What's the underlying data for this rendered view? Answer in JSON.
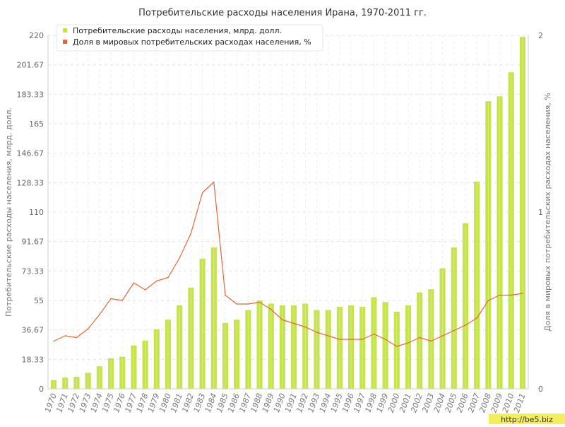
{
  "chart_data": {
    "type": "bar+line",
    "title": "Потребительские расходы населения Ирана, 1970-2011 гг.",
    "ylabel_left": "Потребительские расходы населения, млрд. долл.",
    "ylabel_right": "Доля в мировых потребительских расходах населения, %",
    "ylim_left": [
      0,
      220
    ],
    "ylim_right": [
      0,
      2
    ],
    "y_ticks_left": [
      "0",
      "18.33",
      "36.67",
      "55",
      "73.33",
      "91.67",
      "110",
      "128.33",
      "146.67",
      "165",
      "183.33",
      "201.67",
      "220"
    ],
    "y_ticks_right": [
      "0",
      "1",
      "2"
    ],
    "categories": [
      "1970",
      "1971",
      "1972",
      "1973",
      "1974",
      "1975",
      "1976",
      "1977",
      "1978",
      "1979",
      "1980",
      "1981",
      "1982",
      "1983",
      "1984",
      "1985",
      "1986",
      "1987",
      "1988",
      "1989",
      "1990",
      "1991",
      "1992",
      "1993",
      "1994",
      "1995",
      "1996",
      "1997",
      "1998",
      "1999",
      "2000",
      "2001",
      "2002",
      "2003",
      "2004",
      "2005",
      "2006",
      "2007",
      "2008",
      "2009",
      "2010",
      "2011"
    ],
    "series": [
      {
        "name": "Потребительские расходы населения, млрд. долл.",
        "axis": "left",
        "type": "bar",
        "color": "#c5e34a",
        "values": [
          5.5,
          7,
          7.5,
          10,
          14,
          19,
          20,
          27,
          30,
          37,
          43,
          52,
          63,
          81,
          88,
          41,
          43,
          49,
          55,
          53,
          52,
          52,
          53,
          49,
          49,
          51,
          52,
          51,
          57,
          54,
          48,
          52,
          60,
          62,
          75,
          88,
          103,
          129,
          179,
          182,
          197,
          219
        ]
      },
      {
        "name": "Доля в мировых потребительских расходах населения, %",
        "axis": "right",
        "type": "line",
        "color": "#e8663a",
        "values": [
          0.27,
          0.3,
          0.29,
          0.34,
          0.42,
          0.51,
          0.5,
          0.6,
          0.56,
          0.61,
          0.63,
          0.74,
          0.88,
          1.11,
          1.17,
          0.53,
          0.48,
          0.48,
          0.49,
          0.45,
          0.39,
          0.37,
          0.35,
          0.32,
          0.3,
          0.28,
          0.28,
          0.28,
          0.31,
          0.28,
          0.24,
          0.26,
          0.29,
          0.27,
          0.3,
          0.33,
          0.36,
          0.4,
          0.5,
          0.53,
          0.53,
          0.54
        ]
      }
    ],
    "legend_position": "top-left",
    "grid": true
  },
  "watermark": "http://be5.biz"
}
